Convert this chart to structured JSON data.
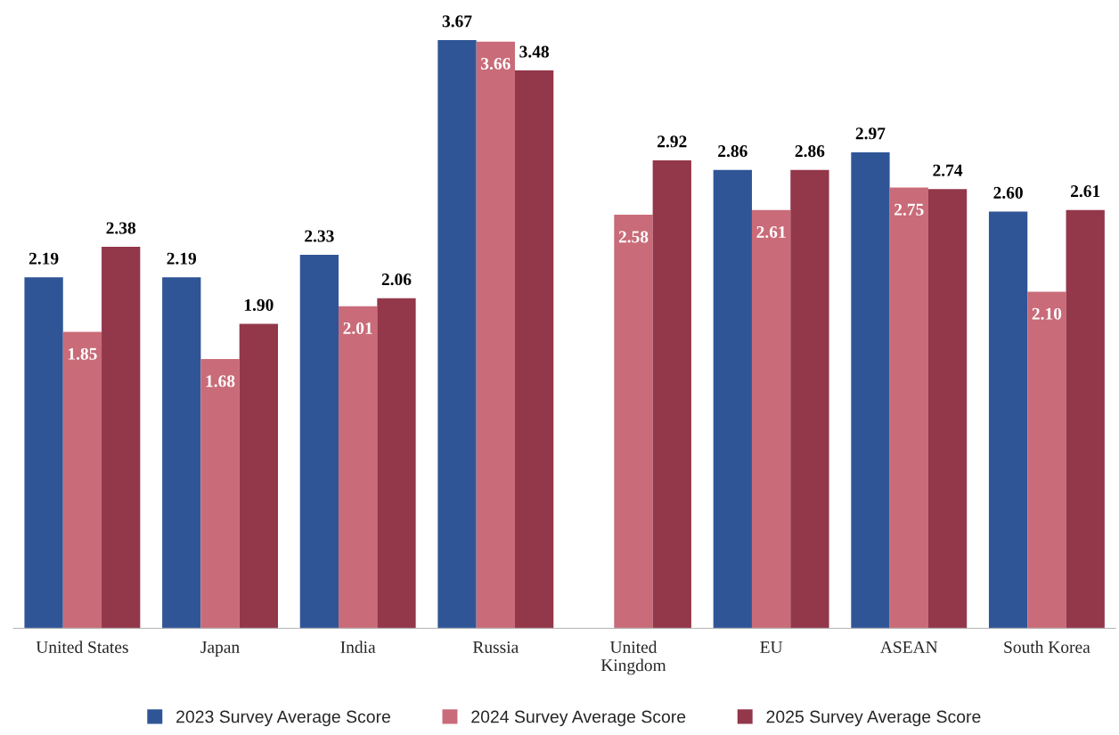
{
  "chart_data": {
    "type": "bar",
    "categories": [
      "United States",
      "Japan",
      "India",
      "Russia",
      "United Kingdom",
      "EU",
      "ASEAN",
      "South Korea"
    ],
    "series": [
      {
        "name": "2023 Survey Average Score",
        "color": "#2f5597",
        "values": [
          2.19,
          2.19,
          2.33,
          3.67,
          null,
          2.86,
          2.97,
          2.6
        ],
        "value_labels": [
          "2.19",
          "2.19",
          "2.33",
          "3.67",
          null,
          "2.86",
          "2.97",
          "2.60"
        ]
      },
      {
        "name": "2024 Survey Average Score",
        "color": "#c96b78",
        "values": [
          1.85,
          1.68,
          2.01,
          3.66,
          2.58,
          2.61,
          2.75,
          2.1
        ],
        "value_labels": [
          "1.85",
          "1.68",
          "2.01",
          "3.66",
          "2.58",
          "2.61",
          "2.75",
          "2.10"
        ]
      },
      {
        "name": "2025 Survey Average Score",
        "color": "#93374a",
        "values": [
          2.38,
          1.9,
          2.06,
          3.48,
          2.92,
          2.86,
          2.74,
          2.61
        ],
        "value_labels": [
          "2.38",
          "1.90",
          "2.06",
          "3.48",
          "2.92",
          "2.86",
          "2.74",
          "2.61"
        ]
      }
    ],
    "legend": "bottom",
    "grid": false
  }
}
